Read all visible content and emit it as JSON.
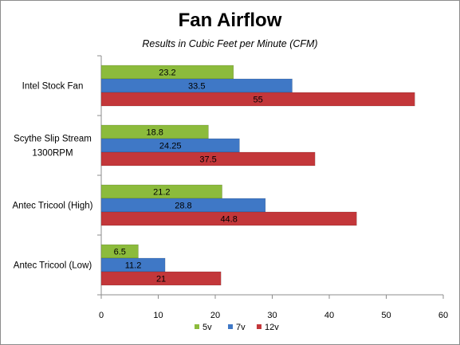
{
  "chart_data": {
    "type": "bar",
    "orientation": "horizontal",
    "title": "Fan Airflow",
    "subtitle": "Results in Cubic Feet per Minute (CFM)",
    "xlabel": "",
    "ylabel": "",
    "xlim": [
      0,
      60
    ],
    "x_ticks": [
      "0",
      "10",
      "20",
      "30",
      "40",
      "50",
      "60"
    ],
    "grid": false,
    "legend_position": "bottom",
    "categories": [
      "Intel Stock Fan",
      "Scythe Slip Stream 1300RPM",
      "Antec Tricool (High)",
      "Antec Tricool (Low)"
    ],
    "category_lines": [
      [
        "Intel Stock Fan"
      ],
      [
        "Scythe Slip Stream",
        "1300RPM"
      ],
      [
        "Antec Tricool (High)"
      ],
      [
        "Antec Tricool (Low)"
      ]
    ],
    "series": [
      {
        "name": "5v",
        "color": "#8cbb3c",
        "values": [
          23.2,
          18.8,
          21.2,
          6.5
        ],
        "labels": [
          "23.2",
          "18.8",
          "21.2",
          "6.5"
        ]
      },
      {
        "name": "7v",
        "color": "#3f78c6",
        "values": [
          33.5,
          24.25,
          28.8,
          11.2
        ],
        "labels": [
          "33.5",
          "24.25",
          "28.8",
          "11.2"
        ]
      },
      {
        "name": "12v",
        "color": "#c3373a",
        "values": [
          55,
          37.5,
          44.8,
          21
        ],
        "labels": [
          "55",
          "37.5",
          "44.8",
          "21"
        ]
      }
    ]
  }
}
